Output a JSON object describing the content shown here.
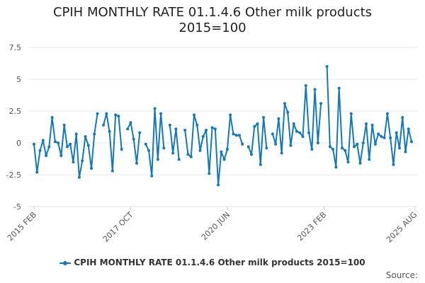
{
  "chart_data": {
    "type": "line",
    "title_line1": "CPIH MONTHLY RATE 01.1.4.6 Other milk products",
    "title_line2": "2015=100",
    "xlabel": "",
    "ylabel": "",
    "ylim": [
      -5,
      7.5
    ],
    "yticks": [
      "-5",
      "-2.5",
      "0",
      "2.5",
      "5",
      "7.5"
    ],
    "x_tick_labels": [
      {
        "label": "2015 FEB",
        "index": 0
      },
      {
        "label": "2017 OCT",
        "index": 32
      },
      {
        "label": "2020 JUN",
        "index": 64
      },
      {
        "label": "2023 FEB",
        "index": 96
      },
      {
        "label": "2025 AUG",
        "index": 126
      }
    ],
    "grid": true,
    "legend_position": "bottom",
    "series": [
      {
        "name": "CPIH MONTHLY RATE 01.1.4.6 Other milk products 2015=100",
        "start": "2015 FEB",
        "values": [
          -0.1,
          -2.3,
          -0.6,
          0.2,
          -1.0,
          -0.3,
          2.0,
          0.1,
          0.0,
          -1.0,
          1.4,
          -0.3,
          -0.1,
          -1.5,
          0.7,
          -2.7,
          -1.4,
          0.5,
          -0.2,
          -2.0,
          0.7,
          2.3,
          null,
          1.4,
          2.3,
          0.9,
          -2.2,
          2.2,
          2.1,
          -0.5,
          null,
          1.1,
          1.6,
          0.3,
          -1.6,
          0.8,
          null,
          -0.1,
          -0.6,
          -2.6,
          2.7,
          -1.3,
          2.3,
          -0.4,
          null,
          1.4,
          -0.8,
          1.1,
          -1.3,
          null,
          1.0,
          -0.9,
          -1.1,
          2.2,
          1.4,
          -0.6,
          0.5,
          1.0,
          -2.4,
          1.2,
          1.1,
          -3.3,
          -0.7,
          -1.3,
          -0.5,
          2.2,
          0.7,
          0.6,
          0.6,
          -0.1,
          null,
          -0.3,
          -0.9,
          1.3,
          1.5,
          -1.7,
          2.0,
          -0.4,
          null,
          0.7,
          -0.1,
          1.9,
          -0.8,
          3.1,
          2.4,
          -0.2,
          1.5,
          0.9,
          0.8,
          0.5,
          4.5,
          0.8,
          -0.5,
          4.2,
          0.0,
          3.1,
          null,
          6.0,
          -0.3,
          -0.5,
          -1.9,
          4.3,
          -0.4,
          -0.6,
          -1.5,
          2.3,
          -0.3,
          -0.1,
          -1.6,
          0.0,
          1.5,
          -1.3,
          1.4,
          -0.1,
          0.7,
          0.5,
          0.4,
          2.3,
          0.4,
          -1.7,
          0.8,
          -0.4,
          2.0,
          -0.7,
          1.1,
          0.1
        ]
      }
    ]
  },
  "legend": {
    "label": "CPIH MONTHLY RATE 01.1.4.6 Other milk products 2015=100"
  },
  "source_label": "Source:",
  "colors": {
    "series": "#1678b4",
    "grid": "#e4e4e4"
  }
}
